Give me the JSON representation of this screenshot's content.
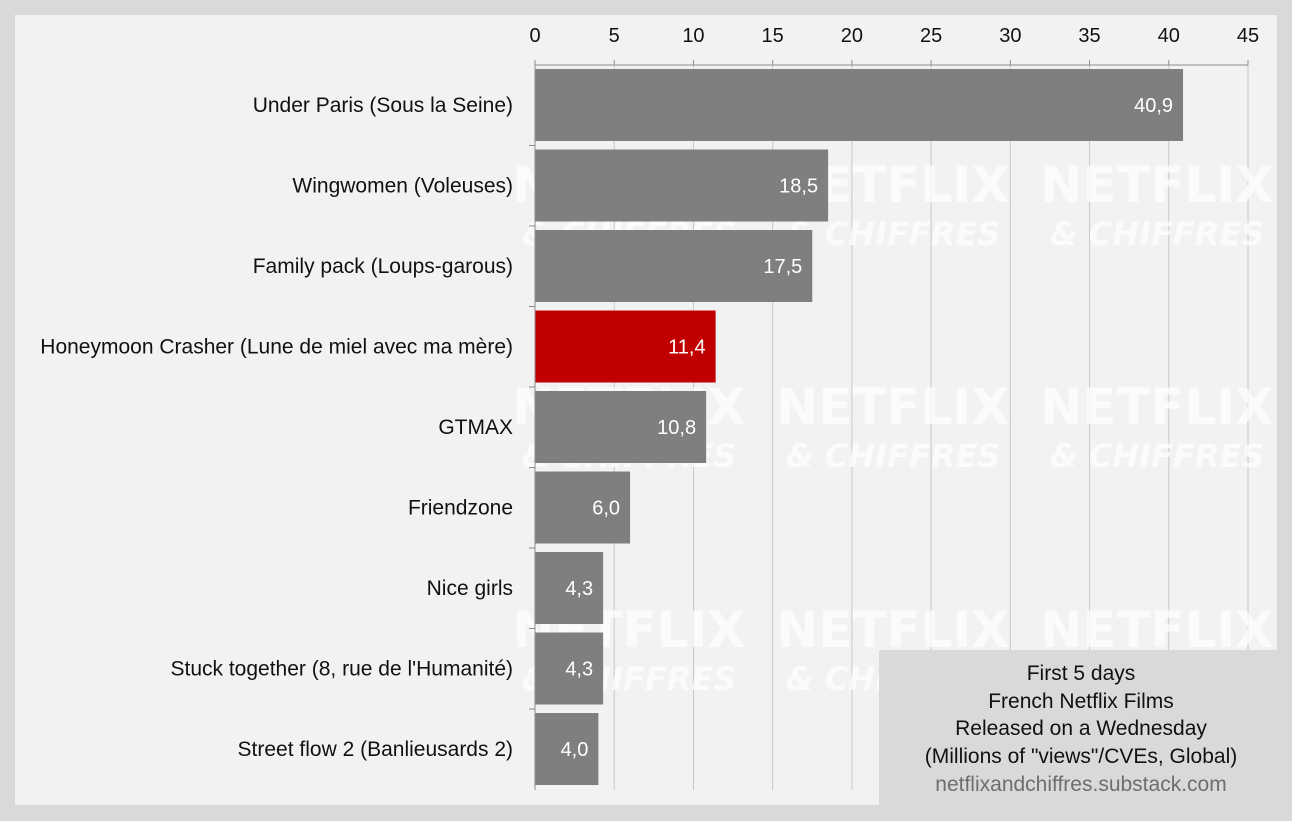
{
  "chart_data": {
    "type": "bar",
    "orientation": "horizontal",
    "categories": [
      "Under Paris (Sous la Seine)",
      "Wingwomen (Voleuses)",
      "Family pack (Loups-garous)",
      "Honeymoon Crasher (Lune de miel avec ma mère)",
      "GTMAX",
      "Friendzone",
      "Nice girls",
      "Stuck together (8, rue de l'Humanité)",
      "Street flow 2 (Banlieusards 2)"
    ],
    "values": [
      40.9,
      18.5,
      17.5,
      11.4,
      10.8,
      6.0,
      4.3,
      4.3,
      4.0
    ],
    "data_labels": [
      "40,9",
      "18,5",
      "17,5",
      "11,4",
      "10,8",
      "6,0",
      "4,3",
      "4,3",
      "4,0"
    ],
    "highlight_index": 3,
    "colors": {
      "bar": "#7f7f7f",
      "highlight": "#c00000",
      "grid": "#c8c8c8",
      "plot_bg": "#f2f2f2",
      "page_bg": "#d9d9d9",
      "note_bg": "#d9d9d9"
    },
    "xlim": [
      0,
      45
    ],
    "x_ticks": [
      0,
      5,
      10,
      15,
      20,
      25,
      30,
      35,
      40,
      45
    ],
    "x_axis_position": "top",
    "grid": true,
    "title": "",
    "xlabel": "",
    "ylabel": ""
  },
  "note": {
    "lines": [
      "First 5 days",
      "French Netflix Films",
      "Released on a Wednesday",
      "(Millions of \"views\"/CVEs, Global)"
    ],
    "source": "netflixandchiffres.substack.com"
  },
  "watermark": {
    "main": "NETFLIX",
    "sub": "& CHIFFRES"
  }
}
